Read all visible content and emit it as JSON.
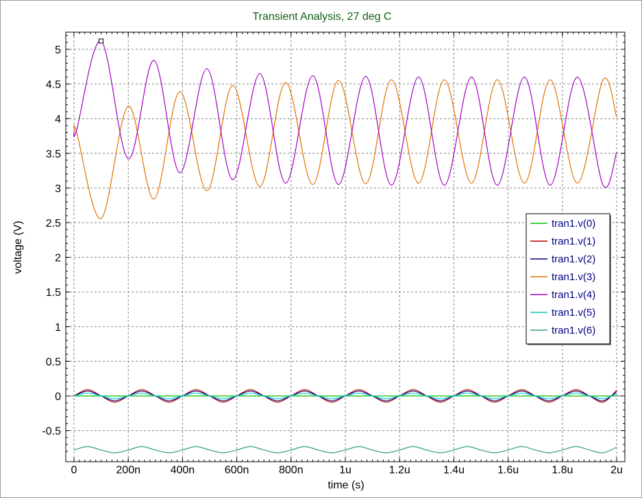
{
  "chart_data": {
    "type": "line",
    "title": "Transient Analysis, 27 deg C",
    "xlabel": "time (s)",
    "ylabel": "voltage (V)",
    "xlim": [
      0,
      2e-06
    ],
    "ylim": [
      -0.9,
      5.25
    ],
    "xticks": [
      0,
      2e-07,
      4e-07,
      6e-07,
      8e-07,
      1e-06,
      1.2e-06,
      1.4e-06,
      1.6e-06,
      1.8e-06,
      2e-06
    ],
    "xtick_labels": [
      "0",
      "200n",
      "400n",
      "600n",
      "800n",
      "1u",
      "1.2u",
      "1.4u",
      "1.6u",
      "1.8u",
      "2u"
    ],
    "yticks": [
      -0.5,
      0,
      0.5,
      1,
      1.5,
      2,
      2.5,
      3,
      3.5,
      4,
      4.5,
      5
    ],
    "ytick_labels": [
      "-0.5",
      "0",
      "0.5",
      "1",
      "1.5",
      "2",
      "2.5",
      "3",
      "3.5",
      "4",
      "4.5",
      "5"
    ],
    "grid": true,
    "legend_position": "right",
    "series": [
      {
        "name": "tran1.v(0)",
        "color": "#00c000",
        "x": [
          0,
          2e-06
        ],
        "y": [
          0,
          0
        ]
      },
      {
        "name": "tran1.v(1)",
        "color": "#c00000",
        "x": [
          0,
          5e-08,
          1e-07,
          1.5e-07,
          2e-07,
          2.5e-07,
          3e-07,
          3.5e-07,
          4e-07,
          4.5e-07,
          5e-07,
          5.5e-07,
          6e-07,
          6.5e-07,
          7e-07,
          7.5e-07,
          8e-07,
          8.5e-07,
          9e-07,
          9.5e-07,
          1e-06,
          1.05e-06,
          1.1e-06,
          1.15e-06,
          1.2e-06,
          1.25e-06,
          1.3e-06,
          1.35e-06,
          1.4e-06,
          1.45e-06,
          1.5e-06,
          1.55e-06,
          1.6e-06,
          1.65e-06,
          1.7e-06,
          1.75e-06,
          1.8e-06,
          1.85e-06,
          1.9e-06,
          1.95e-06,
          2e-06
        ],
        "y": [
          0,
          0.09,
          0,
          -0.09,
          0,
          0.09,
          0,
          -0.09,
          0,
          0.09,
          0,
          -0.09,
          0,
          0.09,
          0,
          -0.09,
          0,
          0.09,
          0,
          -0.09,
          0,
          0.09,
          0,
          -0.09,
          0,
          0.09,
          0,
          -0.09,
          0,
          0.09,
          0,
          -0.09,
          0,
          0.09,
          0,
          -0.09,
          0,
          0.09,
          0,
          -0.09,
          0.08
        ]
      },
      {
        "name": "tran1.v(2)",
        "color": "#000080",
        "x": [
          0,
          5e-08,
          1e-07,
          1.5e-07,
          2e-07,
          2.5e-07,
          3e-07,
          3.5e-07,
          4e-07,
          4.5e-07,
          5e-07,
          5.5e-07,
          6e-07,
          6.5e-07,
          7e-07,
          7.5e-07,
          8e-07,
          8.5e-07,
          9e-07,
          9.5e-07,
          1e-06,
          1.05e-06,
          1.1e-06,
          1.15e-06,
          1.2e-06,
          1.25e-06,
          1.3e-06,
          1.35e-06,
          1.4e-06,
          1.45e-06,
          1.5e-06,
          1.55e-06,
          1.6e-06,
          1.65e-06,
          1.7e-06,
          1.75e-06,
          1.8e-06,
          1.85e-06,
          1.9e-06,
          1.95e-06,
          2e-06
        ],
        "y": [
          0,
          0.07,
          0,
          -0.07,
          0,
          0.07,
          0,
          -0.07,
          0,
          0.07,
          0,
          -0.07,
          0,
          0.07,
          0,
          -0.07,
          0,
          0.07,
          0,
          -0.07,
          0,
          0.07,
          0,
          -0.07,
          0,
          0.07,
          0,
          -0.07,
          0,
          0.07,
          0,
          -0.07,
          0,
          0.07,
          0,
          -0.07,
          0,
          0.07,
          0,
          -0.07,
          0.06
        ]
      },
      {
        "name": "tran1.v(3)",
        "color": "#e07000",
        "x": [
          0,
          1e-08,
          1e-07,
          2e-07,
          2.95e-07,
          3.9e-07,
          4.9e-07,
          5.85e-07,
          6.85e-07,
          7.8e-07,
          8.8e-07,
          9.75e-07,
          1.075e-06,
          1.17e-06,
          1.27e-06,
          1.365e-06,
          1.465e-06,
          1.56e-06,
          1.66e-06,
          1.755e-06,
          1.855e-06,
          1.95e-06,
          2e-06
        ],
        "y": [
          3.82,
          3.8,
          2.56,
          4.18,
          2.84,
          4.39,
          2.96,
          4.48,
          3.02,
          4.52,
          3.05,
          4.55,
          3.06,
          4.56,
          3.07,
          4.56,
          3.07,
          4.56,
          3.07,
          4.56,
          3.07,
          4.56,
          4.02
        ]
      },
      {
        "name": "tran1.v(4)",
        "color": "#a000c0",
        "x": [
          0,
          1e-08,
          1e-07,
          2e-07,
          2.95e-07,
          3.9e-07,
          4.9e-07,
          5.85e-07,
          6.85e-07,
          7.8e-07,
          8.8e-07,
          9.75e-07,
          1.075e-06,
          1.17e-06,
          1.27e-06,
          1.365e-06,
          1.465e-06,
          1.56e-06,
          1.66e-06,
          1.755e-06,
          1.855e-06,
          1.95e-06,
          2e-06
        ],
        "y": [
          3.82,
          3.84,
          5.12,
          3.42,
          4.84,
          3.22,
          4.72,
          3.12,
          4.65,
          3.07,
          4.62,
          3.05,
          4.61,
          3.04,
          4.6,
          3.04,
          4.6,
          3.04,
          4.6,
          3.04,
          4.6,
          3.04,
          3.52
        ]
      },
      {
        "name": "tran1.v(5)",
        "color": "#00c8c8",
        "x": [
          0,
          5e-08,
          1e-07,
          1.5e-07,
          2e-07,
          2.5e-07,
          3e-07,
          3.5e-07,
          4e-07,
          4.5e-07,
          5e-07,
          5.5e-07,
          6e-07,
          6.5e-07,
          7e-07,
          7.5e-07,
          8e-07,
          8.5e-07,
          9e-07,
          9.5e-07,
          1e-06,
          1.05e-06,
          1.1e-06,
          1.15e-06,
          1.2e-06,
          1.25e-06,
          1.3e-06,
          1.35e-06,
          1.4e-06,
          1.45e-06,
          1.5e-06,
          1.55e-06,
          1.6e-06,
          1.65e-06,
          1.7e-06,
          1.75e-06,
          1.8e-06,
          1.85e-06,
          1.9e-06,
          1.95e-06,
          2e-06
        ],
        "y": [
          0,
          0.04,
          0,
          -0.04,
          0,
          0.04,
          0,
          -0.04,
          0,
          0.04,
          0,
          -0.04,
          0,
          0.04,
          0,
          -0.04,
          0,
          0.04,
          0,
          -0.04,
          0,
          0.04,
          0,
          -0.04,
          0,
          0.04,
          0,
          -0.04,
          0,
          0.04,
          0,
          -0.04,
          0,
          0.04,
          0,
          -0.04,
          0,
          0.04,
          0,
          -0.04,
          0.03
        ]
      },
      {
        "name": "tran1.v(6)",
        "color": "#30a080",
        "x": [
          0,
          5e-08,
          1e-07,
          1.5e-07,
          2e-07,
          2.5e-07,
          3e-07,
          3.5e-07,
          4e-07,
          4.5e-07,
          5e-07,
          5.5e-07,
          6e-07,
          6.5e-07,
          7e-07,
          7.5e-07,
          8e-07,
          8.5e-07,
          9e-07,
          9.5e-07,
          1e-06,
          1.05e-06,
          1.1e-06,
          1.15e-06,
          1.2e-06,
          1.25e-06,
          1.3e-06,
          1.35e-06,
          1.4e-06,
          1.45e-06,
          1.5e-06,
          1.55e-06,
          1.6e-06,
          1.65e-06,
          1.7e-06,
          1.75e-06,
          1.8e-06,
          1.85e-06,
          1.9e-06,
          1.95e-06,
          2e-06
        ],
        "y": [
          -0.78,
          -0.73,
          -0.78,
          -0.82,
          -0.78,
          -0.73,
          -0.78,
          -0.82,
          -0.78,
          -0.73,
          -0.78,
          -0.82,
          -0.78,
          -0.73,
          -0.78,
          -0.82,
          -0.78,
          -0.73,
          -0.78,
          -0.82,
          -0.78,
          -0.73,
          -0.78,
          -0.82,
          -0.78,
          -0.73,
          -0.78,
          -0.82,
          -0.78,
          -0.73,
          -0.78,
          -0.82,
          -0.78,
          -0.73,
          -0.78,
          -0.82,
          -0.78,
          -0.73,
          -0.78,
          -0.82,
          -0.74
        ]
      }
    ],
    "marker": {
      "x": 1e-07,
      "y": 5.12
    }
  }
}
